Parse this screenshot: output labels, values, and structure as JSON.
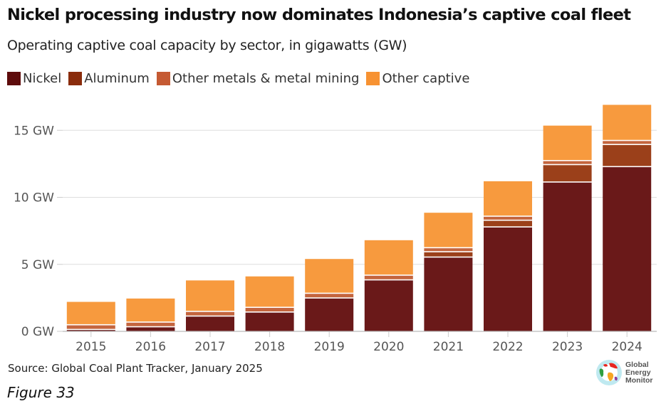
{
  "header": {
    "title": "Nickel processing industry now dominates Indonesia’s captive coal fleet",
    "subtitle": "Operating captive coal capacity by sector, in gigawatts (GW)"
  },
  "footer": {
    "source": "Source: Global Coal Plant Tracker, January 2025",
    "figure_label": "Figure 33",
    "logo_lines": [
      "Global",
      "Energy",
      "Monitor"
    ]
  },
  "chart_data": {
    "type": "bar",
    "stacked": true,
    "title": "Nickel processing industry now dominates Indonesia’s captive coal fleet",
    "subtitle": "Operating captive coal capacity by sector, in gigawatts (GW)",
    "xlabel": "",
    "ylabel": "",
    "categories": [
      "2015",
      "2016",
      "2017",
      "2018",
      "2019",
      "2020",
      "2021",
      "2022",
      "2023",
      "2024"
    ],
    "series": [
      {
        "name": "Nickel",
        "color": "#5e0c0c",
        "bar_color": "#6a1919",
        "values": [
          0.1,
          0.3,
          1.1,
          1.4,
          2.45,
          3.8,
          5.5,
          7.75,
          11.1,
          12.25
        ]
      },
      {
        "name": "Aluminum",
        "color": "#8a2c0c",
        "bar_color": "#9b401a",
        "values": [
          0,
          0,
          0,
          0,
          0,
          0,
          0.4,
          0.5,
          1.3,
          1.65
        ]
      },
      {
        "name": "Other metals & metal mining",
        "color": "#c55a33",
        "bar_color": "#c4653e",
        "values": [
          0.35,
          0.35,
          0.35,
          0.35,
          0.35,
          0.35,
          0.3,
          0.3,
          0.3,
          0.3
        ]
      },
      {
        "name": "Other captive",
        "color": "#f79232",
        "bar_color": "#f79a3e",
        "values": [
          1.75,
          1.8,
          2.35,
          2.35,
          2.6,
          2.65,
          2.65,
          2.65,
          2.65,
          2.7
        ]
      }
    ],
    "yticks": [
      0,
      5,
      10,
      15
    ],
    "ytick_labels": [
      "0 GW",
      "5 GW",
      "10 GW",
      "15 GW"
    ],
    "ylim": [
      0,
      17.5
    ],
    "grid": true,
    "legend_position": "top-left"
  }
}
